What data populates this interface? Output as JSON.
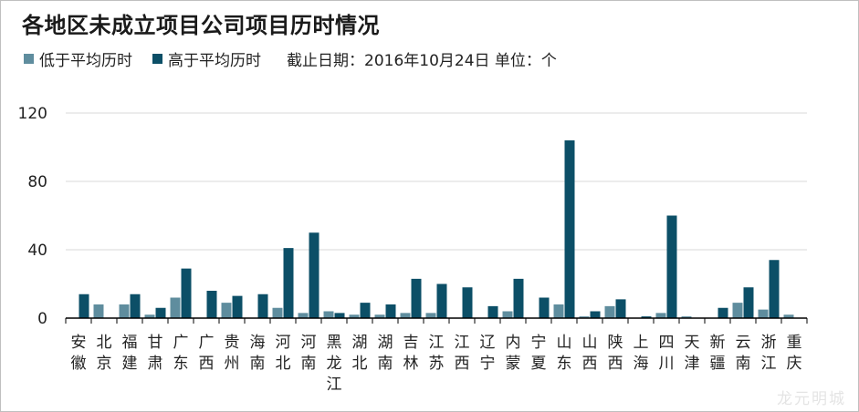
{
  "title": "各地区未成立项目公司项目历时情况",
  "note": "截止日期：2016年10月24日   单位：个",
  "watermark": "龙元明城",
  "colors": {
    "low": "#5f8d9e",
    "high": "#0c4f67",
    "grid": "#d9d9d9",
    "axis": "#000000"
  },
  "chart_data": {
    "type": "bar",
    "title": "各地区未成立项目公司项目历时情况",
    "xlabel": "",
    "ylabel": "",
    "ylim": [
      0,
      120
    ],
    "yticks": [
      "0",
      "40",
      "80",
      "120"
    ],
    "grid": true,
    "legend": "top-left",
    "categories": [
      "安徽",
      "北京",
      "福建",
      "甘肃",
      "广东",
      "广西",
      "贵州",
      "海南",
      "河北",
      "河南",
      "黑龙江",
      "湖北",
      "湖南",
      "吉林",
      "江苏",
      "江西",
      "辽宁",
      "内蒙",
      "宁夏",
      "山东",
      "山西",
      "陕西",
      "上海",
      "四川",
      "天津",
      "新疆",
      "云南",
      "浙江",
      "重庆"
    ],
    "series": [
      {
        "name": "低于平均历时",
        "values": [
          0,
          8,
          8,
          2,
          12,
          0,
          9,
          0,
          6,
          3,
          4,
          2,
          2,
          3,
          3,
          0,
          0,
          4,
          0,
          8,
          1,
          7,
          0,
          3,
          1,
          0,
          9,
          5,
          2
        ]
      },
      {
        "name": "高于平均历时",
        "values": [
          14,
          0,
          14,
          6,
          29,
          16,
          13,
          14,
          41,
          50,
          3,
          9,
          8,
          23,
          20,
          18,
          7,
          23,
          12,
          104,
          4,
          11,
          1,
          60,
          0,
          6,
          18,
          34,
          0
        ]
      }
    ]
  }
}
